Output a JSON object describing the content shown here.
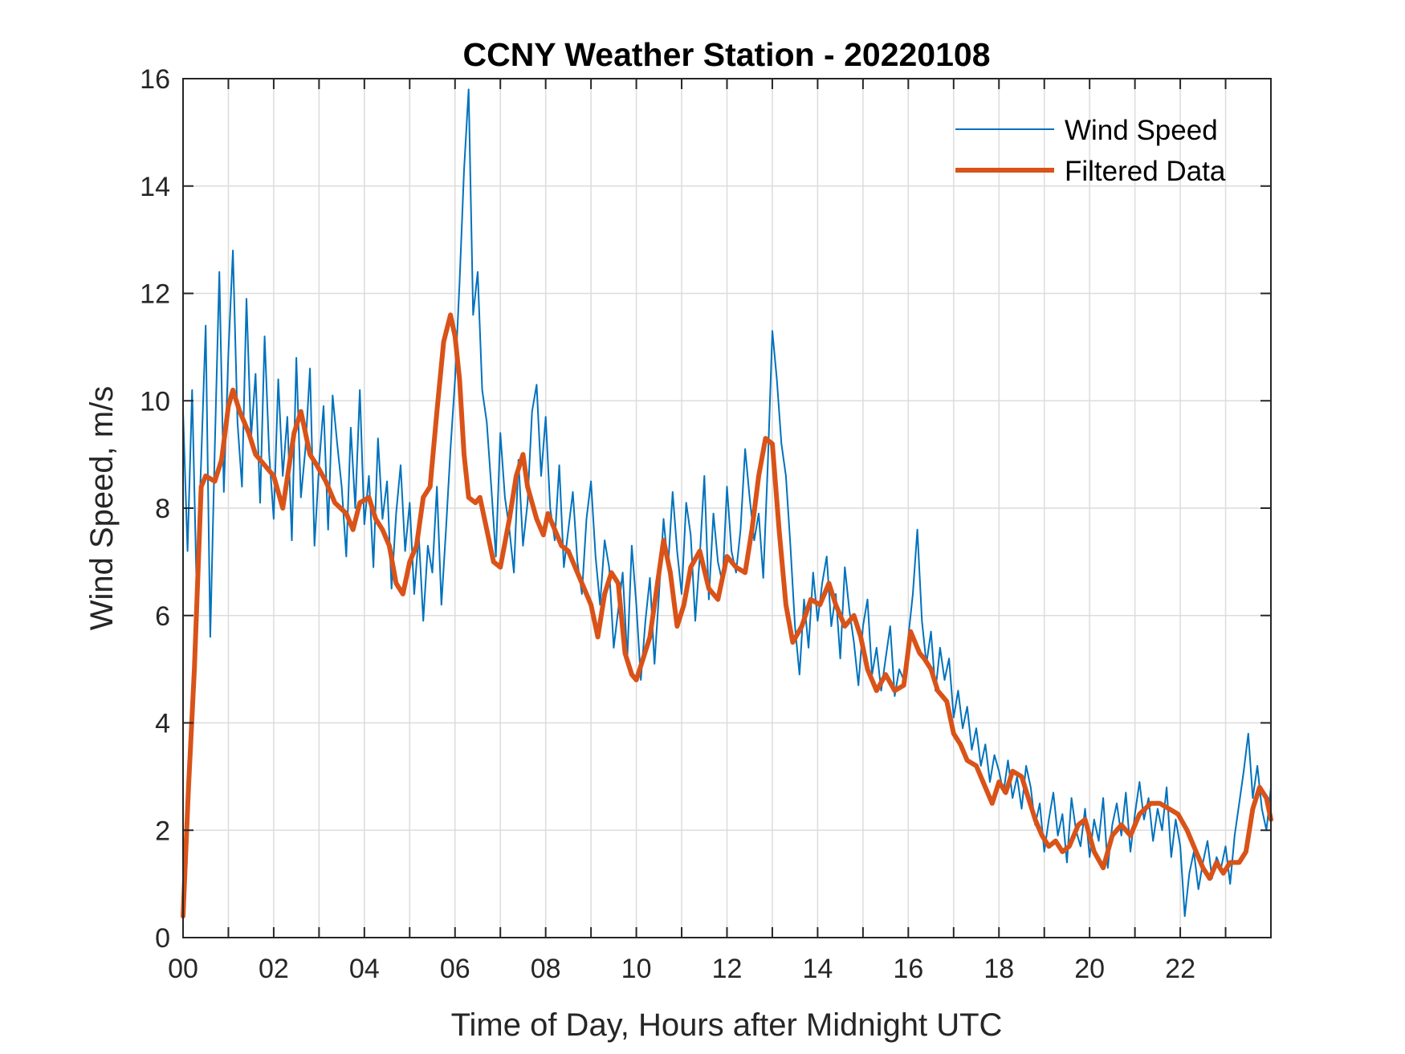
{
  "chart_data": {
    "type": "line",
    "title": "CCNY Weather Station - 20220108",
    "xlabel": "Time of Day, Hours after Midnight UTC",
    "ylabel": "Wind Speed, m/s",
    "xlim": [
      0,
      24
    ],
    "ylim": [
      0,
      16
    ],
    "grid": true,
    "x_ticks": [
      0,
      2,
      4,
      6,
      8,
      10,
      12,
      14,
      16,
      18,
      20,
      22
    ],
    "x_tick_labels": [
      "00",
      "02",
      "04",
      "06",
      "08",
      "10",
      "12",
      "14",
      "16",
      "18",
      "20",
      "22"
    ],
    "x_minor_grid_step": 1,
    "y_ticks": [
      0,
      2,
      4,
      6,
      8,
      10,
      12,
      14,
      16
    ],
    "y_tick_labels": [
      "0",
      "2",
      "4",
      "6",
      "8",
      "10",
      "12",
      "14",
      "16"
    ],
    "legend": {
      "placement": "top-right",
      "entries": [
        "Wind Speed",
        "Filtered Data"
      ]
    },
    "colors": {
      "wind": "#0072BD",
      "filtered": "#D95319",
      "grid": "#DCDCDC",
      "axis": "#262626"
    },
    "series": [
      {
        "name": "Wind Speed",
        "x_start": 0,
        "x_step": 0.1,
        "values": [
          9.8,
          7.2,
          10.2,
          6.5,
          8.9,
          11.4,
          5.6,
          9.1,
          12.4,
          8.3,
          10.9,
          12.8,
          9.6,
          8.4,
          11.9,
          9.3,
          10.5,
          8.1,
          11.2,
          9.0,
          7.8,
          10.4,
          8.6,
          9.7,
          7.4,
          10.8,
          8.2,
          9.1,
          10.6,
          7.3,
          8.8,
          9.9,
          7.6,
          10.1,
          9.2,
          8.4,
          7.1,
          9.5,
          8.0,
          10.2,
          7.7,
          8.6,
          6.9,
          9.3,
          7.8,
          8.5,
          6.5,
          7.9,
          8.8,
          7.2,
          8.1,
          6.4,
          7.5,
          5.9,
          7.3,
          6.8,
          8.4,
          6.2,
          7.6,
          9.1,
          10.4,
          12.2,
          14.3,
          15.8,
          11.6,
          12.4,
          10.2,
          9.6,
          8.4,
          7.1,
          9.4,
          8.2,
          7.6,
          6.8,
          8.9,
          7.3,
          8.1,
          9.8,
          10.3,
          8.6,
          9.7,
          8.0,
          7.4,
          8.8,
          6.9,
          7.6,
          8.3,
          7.0,
          6.4,
          7.8,
          8.5,
          7.1,
          6.2,
          7.4,
          6.9,
          5.4,
          6.1,
          6.8,
          5.2,
          7.3,
          6.2,
          4.8,
          5.9,
          6.7,
          5.1,
          6.4,
          7.8,
          6.9,
          8.3,
          7.2,
          6.4,
          8.1,
          7.5,
          5.9,
          7.1,
          8.6,
          6.3,
          7.9,
          7.0,
          6.6,
          8.4,
          7.2,
          6.8,
          7.6,
          9.1,
          8.2,
          7.4,
          7.9,
          6.7,
          8.8,
          11.3,
          10.4,
          9.2,
          8.6,
          7.3,
          5.8,
          4.9,
          6.3,
          5.4,
          6.8,
          5.9,
          6.6,
          7.1,
          5.8,
          6.4,
          5.2,
          6.9,
          6.1,
          5.5,
          4.7,
          5.8,
          6.3,
          4.9,
          5.4,
          4.6,
          5.2,
          5.8,
          4.5,
          5.0,
          4.8,
          5.6,
          6.4,
          7.6,
          5.9,
          5.1,
          5.7,
          4.6,
          5.4,
          4.8,
          5.2,
          4.1,
          4.6,
          3.9,
          4.3,
          3.5,
          3.9,
          3.2,
          3.6,
          2.9,
          3.4,
          3.1,
          2.7,
          3.3,
          2.6,
          3.0,
          2.4,
          3.2,
          2.8,
          2.1,
          2.5,
          1.6,
          2.2,
          2.7,
          1.9,
          2.3,
          1.4,
          2.6,
          2.0,
          1.7,
          2.4,
          1.5,
          2.2,
          1.8,
          2.6,
          1.3,
          2.1,
          2.5,
          1.9,
          2.7,
          1.6,
          2.3,
          2.9,
          2.2,
          2.6,
          1.8,
          2.4,
          2.0,
          2.8,
          1.5,
          2.2,
          1.7,
          0.4,
          1.2,
          1.6,
          0.9,
          1.4,
          1.8,
          1.1,
          1.5,
          1.3,
          1.7,
          1.0,
          1.9,
          2.5,
          3.1,
          3.8,
          2.6,
          3.2,
          2.4,
          2.0,
          2.8
        ]
      },
      {
        "name": "Filtered Data",
        "x": [
          0,
          0.12,
          0.25,
          0.4,
          0.5,
          0.7,
          0.85,
          1.0,
          1.1,
          1.25,
          1.45,
          1.6,
          1.8,
          2.0,
          2.2,
          2.45,
          2.6,
          2.8,
          2.95,
          3.15,
          3.35,
          3.6,
          3.75,
          3.9,
          4.1,
          4.25,
          4.4,
          4.55,
          4.7,
          4.85,
          5.0,
          5.15,
          5.3,
          5.45,
          5.6,
          5.75,
          5.9,
          6.0,
          6.1,
          6.2,
          6.3,
          6.45,
          6.55,
          6.7,
          6.85,
          7.0,
          7.2,
          7.35,
          7.5,
          7.6,
          7.8,
          7.95,
          8.05,
          8.2,
          8.35,
          8.5,
          8.7,
          8.85,
          9.0,
          9.15,
          9.3,
          9.45,
          9.6,
          9.75,
          9.9,
          10.0,
          10.15,
          10.3,
          10.45,
          10.6,
          10.75,
          10.9,
          11.05,
          11.2,
          11.4,
          11.6,
          11.8,
          12.0,
          12.2,
          12.4,
          12.55,
          12.7,
          12.85,
          13.0,
          13.15,
          13.3,
          13.45,
          13.65,
          13.85,
          14.05,
          14.25,
          14.4,
          14.6,
          14.8,
          14.95,
          15.1,
          15.3,
          15.5,
          15.7,
          15.9,
          16.05,
          16.25,
          16.35,
          16.5,
          16.65,
          16.85,
          17.0,
          17.15,
          17.3,
          17.5,
          17.7,
          17.85,
          18.0,
          18.15,
          18.3,
          18.5,
          18.65,
          18.8,
          18.95,
          19.1,
          19.25,
          19.4,
          19.55,
          19.75,
          19.9,
          20.1,
          20.3,
          20.5,
          20.7,
          20.9,
          21.1,
          21.35,
          21.55,
          21.75,
          21.95,
          22.15,
          22.35,
          22.5,
          22.65,
          22.8,
          22.95,
          23.1,
          23.3,
          23.45,
          23.6,
          23.75,
          23.9,
          24.0
        ],
        "values": [
          0.4,
          2.8,
          5.0,
          8.4,
          8.6,
          8.5,
          8.9,
          9.9,
          10.2,
          9.8,
          9.4,
          9.0,
          8.8,
          8.6,
          8.0,
          9.4,
          9.8,
          9.0,
          8.8,
          8.5,
          8.1,
          7.9,
          7.6,
          8.1,
          8.2,
          7.8,
          7.6,
          7.3,
          6.6,
          6.4,
          7.0,
          7.3,
          8.2,
          8.4,
          9.8,
          11.1,
          11.6,
          11.2,
          10.4,
          9.0,
          8.2,
          8.1,
          8.2,
          7.6,
          7.0,
          6.9,
          7.8,
          8.6,
          9.0,
          8.4,
          7.8,
          7.5,
          7.9,
          7.6,
          7.3,
          7.2,
          6.8,
          6.5,
          6.2,
          5.6,
          6.4,
          6.8,
          6.6,
          5.3,
          4.9,
          4.8,
          5.2,
          5.6,
          6.5,
          7.4,
          6.8,
          5.8,
          6.2,
          6.9,
          7.2,
          6.5,
          6.3,
          7.1,
          6.9,
          6.8,
          7.6,
          8.6,
          9.3,
          9.2,
          7.6,
          6.2,
          5.5,
          5.8,
          6.3,
          6.2,
          6.6,
          6.2,
          5.8,
          6.0,
          5.6,
          5.0,
          4.6,
          4.9,
          4.6,
          4.7,
          5.7,
          5.3,
          5.2,
          5.0,
          4.6,
          4.4,
          3.8,
          3.6,
          3.3,
          3.2,
          2.8,
          2.5,
          2.9,
          2.7,
          3.1,
          3.0,
          2.6,
          2.2,
          1.9,
          1.7,
          1.8,
          1.6,
          1.7,
          2.1,
          2.2,
          1.6,
          1.3,
          1.9,
          2.1,
          1.9,
          2.3,
          2.5,
          2.5,
          2.4,
          2.3,
          2.0,
          1.6,
          1.3,
          1.1,
          1.4,
          1.2,
          1.4,
          1.4,
          1.6,
          2.4,
          2.8,
          2.6,
          2.2
        ]
      }
    ]
  }
}
